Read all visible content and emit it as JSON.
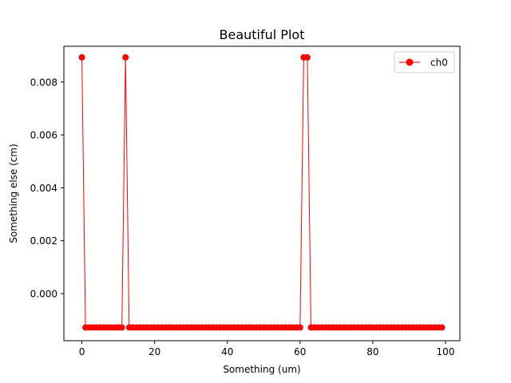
{
  "chart_data": {
    "type": "line",
    "title": "Beautiful Plot",
    "xlabel": "Something (um)",
    "ylabel": "Something else (cm)",
    "xlim": [
      -4.95,
      103.95
    ],
    "ylim": [
      -0.00178,
      0.00935
    ],
    "xticks": [
      0,
      20,
      40,
      60,
      80,
      100
    ],
    "xtick_labels": [
      "0",
      "20",
      "40",
      "60",
      "80",
      "100"
    ],
    "yticks": [
      0.0,
      0.002,
      0.004,
      0.006,
      0.008
    ],
    "ytick_labels": [
      "0.000",
      "0.002",
      "0.004",
      "0.006",
      "0.008"
    ],
    "grid": false,
    "legend_position": "top-right",
    "series": [
      {
        "name": "ch0",
        "color": "#ff0000",
        "marker": "circle",
        "x": [
          0,
          1,
          2,
          3,
          4,
          5,
          6,
          7,
          8,
          9,
          10,
          11,
          12,
          13,
          14,
          15,
          16,
          17,
          18,
          19,
          20,
          21,
          22,
          23,
          24,
          25,
          26,
          27,
          28,
          29,
          30,
          31,
          32,
          33,
          34,
          35,
          36,
          37,
          38,
          39,
          40,
          41,
          42,
          43,
          44,
          45,
          46,
          47,
          48,
          49,
          50,
          51,
          52,
          53,
          54,
          55,
          56,
          57,
          58,
          59,
          60,
          61,
          62,
          63,
          64,
          65,
          66,
          67,
          68,
          69,
          70,
          71,
          72,
          73,
          74,
          75,
          76,
          77,
          78,
          79,
          80,
          81,
          82,
          83,
          84,
          85,
          86,
          87,
          88,
          89,
          90,
          91,
          92,
          93,
          94,
          95,
          96,
          97,
          98,
          99
        ],
        "y": [
          0.00893,
          -0.00128,
          -0.00128,
          -0.00128,
          -0.00128,
          -0.00128,
          -0.00128,
          -0.00128,
          -0.00128,
          -0.00128,
          -0.00128,
          -0.00128,
          0.00893,
          -0.00128,
          -0.00128,
          -0.00128,
          -0.00128,
          -0.00128,
          -0.00128,
          -0.00128,
          -0.00128,
          -0.00128,
          -0.00128,
          -0.00128,
          -0.00128,
          -0.00128,
          -0.00128,
          -0.00128,
          -0.00128,
          -0.00128,
          -0.00128,
          -0.00128,
          -0.00128,
          -0.00128,
          -0.00128,
          -0.00128,
          -0.00128,
          -0.00128,
          -0.00128,
          -0.00128,
          -0.00128,
          -0.00128,
          -0.00128,
          -0.00128,
          -0.00128,
          -0.00128,
          -0.00128,
          -0.00128,
          -0.00128,
          -0.00128,
          -0.00128,
          -0.00128,
          -0.00128,
          -0.00128,
          -0.00128,
          -0.00128,
          -0.00128,
          -0.00128,
          -0.00128,
          -0.00128,
          -0.00128,
          0.00893,
          0.00893,
          -0.00128,
          -0.00128,
          -0.00128,
          -0.00128,
          -0.00128,
          -0.00128,
          -0.00128,
          -0.00128,
          -0.00128,
          -0.00128,
          -0.00128,
          -0.00128,
          -0.00128,
          -0.00128,
          -0.00128,
          -0.00128,
          -0.00128,
          -0.00128,
          -0.00128,
          -0.00128,
          -0.00128,
          -0.00128,
          -0.00128,
          -0.00128,
          -0.00128,
          -0.00128,
          -0.00128,
          -0.00128,
          -0.00128,
          -0.00128,
          -0.00128,
          -0.00128,
          -0.00128,
          -0.00128,
          -0.00128,
          -0.00128,
          -0.00128
        ]
      }
    ]
  }
}
